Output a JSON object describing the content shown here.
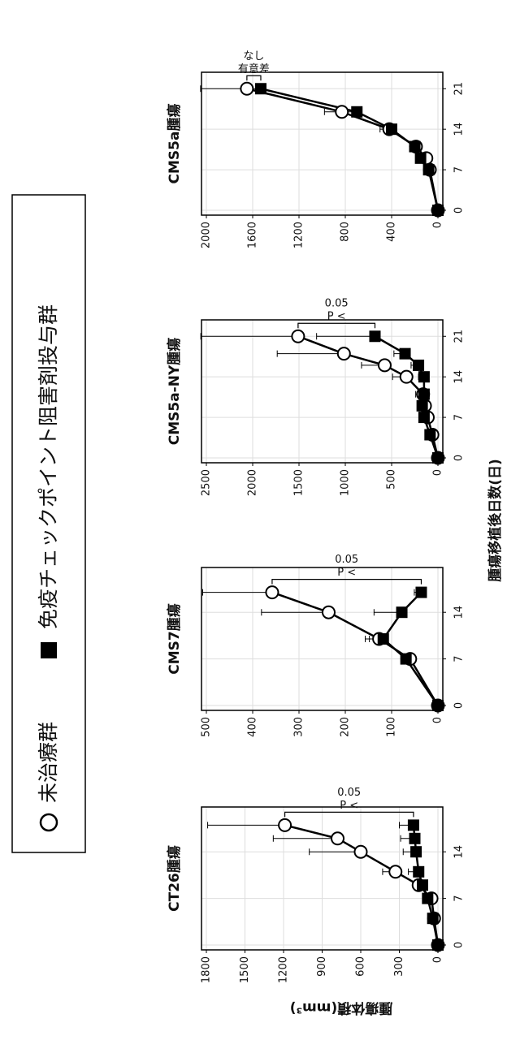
{
  "legend": [
    "未治療群",
    "免疫チェックポイント阻害剤投与群"
  ],
  "y_label": "腫瘍体積(mm³)",
  "x_label": "腫瘍移植後日数(日)",
  "chart_data": [
    {
      "type": "line",
      "title": "CT26腫瘍",
      "grid": true,
      "x": [
        0,
        4,
        7,
        9,
        11,
        14,
        16,
        18
      ],
      "xlim": [
        0,
        20
      ],
      "xticks": [
        0,
        7,
        14
      ],
      "ylim": [
        0,
        1800
      ],
      "yticks": [
        0,
        300,
        600,
        900,
        1200,
        1500,
        1800
      ],
      "annotation": [
        "P <",
        "0.05"
      ],
      "series": [
        {
          "marker": "circle",
          "color": "#000000",
          "values": [
            0,
            30,
            50,
            150,
            330,
            600,
            780,
            1190
          ],
          "errors": [
            0,
            10,
            20,
            40,
            100,
            400,
            500,
            600
          ]
        },
        {
          "marker": "square",
          "color": "#000000",
          "values": [
            0,
            40,
            80,
            120,
            150,
            170,
            180,
            190
          ],
          "errors": [
            0,
            10,
            20,
            40,
            80,
            100,
            110,
            110
          ]
        }
      ]
    },
    {
      "type": "line",
      "title": "CMS7腫瘍",
      "grid": true,
      "x": [
        0,
        7,
        10,
        14,
        17
      ],
      "xlim": [
        0,
        20
      ],
      "xticks": [
        0,
        7,
        14
      ],
      "ylim": [
        0,
        500
      ],
      "yticks": [
        0,
        100,
        200,
        300,
        400,
        500
      ],
      "annotation": [
        "P <",
        "0.05"
      ],
      "series": [
        {
          "marker": "circle",
          "color": "#000000",
          "values": [
            0,
            60,
            127,
            236,
            358
          ],
          "errors": [
            0,
            20,
            30,
            145,
            150
          ]
        },
        {
          "marker": "square",
          "color": "#000000",
          "values": [
            0,
            69,
            118,
            78,
            36
          ],
          "errors": [
            0,
            10,
            30,
            60,
            15
          ]
        }
      ]
    },
    {
      "type": "line",
      "title": "CMS5a-NY腫瘍",
      "grid": true,
      "x": [
        0,
        4,
        7,
        9,
        11,
        14,
        16,
        18,
        21
      ],
      "xlim": [
        0,
        23
      ],
      "xticks": [
        0,
        7,
        14,
        21
      ],
      "ylim": [
        0,
        2500
      ],
      "yticks": [
        0,
        500,
        1000,
        1500,
        2000,
        2500
      ],
      "annotation": [
        "P <",
        "0.05"
      ],
      "series": [
        {
          "marker": "circle",
          "color": "#000000",
          "values": [
            0,
            60,
            110,
            140,
            160,
            340,
            575,
            1015,
            1510
          ],
          "errors": [
            0,
            20,
            40,
            60,
            80,
            150,
            250,
            720,
            1050
          ]
        },
        {
          "marker": "square",
          "color": "#000000",
          "values": [
            0,
            85,
            150,
            170,
            150,
            150,
            210,
            355,
            680
          ],
          "errors": [
            0,
            20,
            30,
            40,
            40,
            60,
            80,
            120,
            630
          ]
        }
      ]
    },
    {
      "type": "line",
      "title": "CMS5a腫瘍",
      "grid": true,
      "x": [
        0,
        7,
        9,
        11,
        14,
        17,
        21
      ],
      "xlim": [
        0,
        23
      ],
      "xticks": [
        0,
        7,
        14,
        21
      ],
      "ylim": [
        0,
        2000
      ],
      "yticks": [
        0,
        400,
        800,
        1200,
        1600,
        2000
      ],
      "annotation": [
        "有意差",
        "なし"
      ],
      "series": [
        {
          "marker": "circle",
          "color": "#000000",
          "values": [
            0,
            70,
            100,
            190,
            420,
            830,
            1650
          ],
          "errors": [
            0,
            20,
            30,
            50,
            80,
            150,
            400
          ]
        },
        {
          "marker": "square",
          "color": "#000000",
          "values": [
            0,
            80,
            150,
            200,
            400,
            700,
            1530
          ],
          "errors": [
            0,
            20,
            30,
            40,
            60,
            100,
            150
          ]
        }
      ]
    }
  ]
}
